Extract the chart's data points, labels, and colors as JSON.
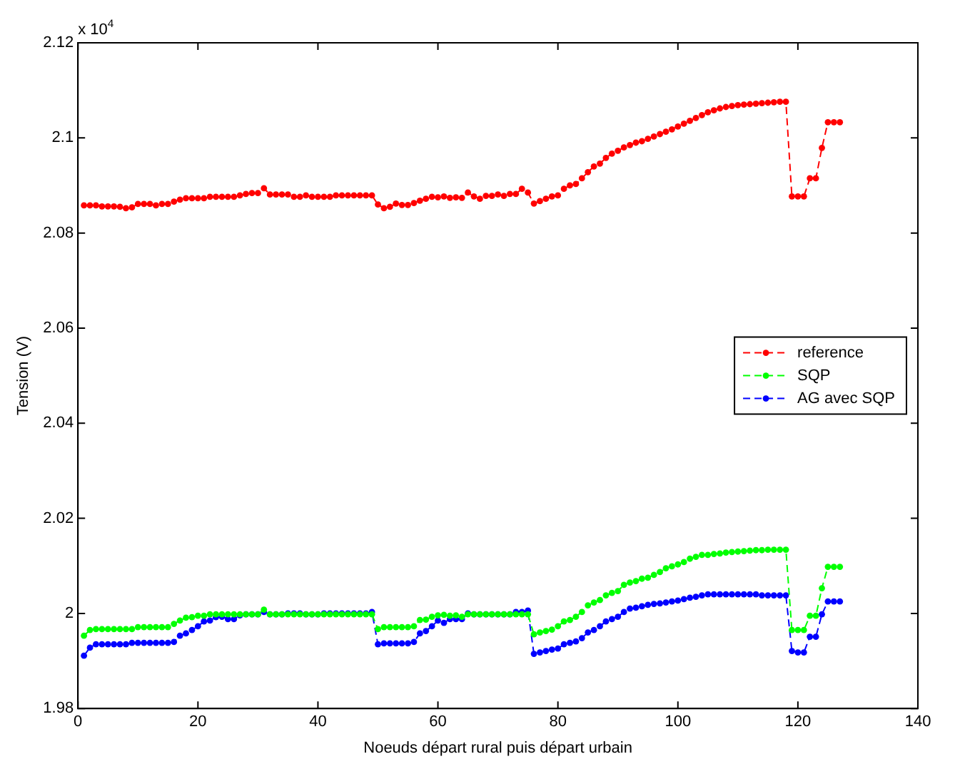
{
  "chart_data": {
    "type": "line",
    "xlabel": "Noeuds départ rural puis départ urbain",
    "ylabel": "Tension (V)",
    "annotations": [
      "x 10$^{4}$"
    ],
    "x": [
      1,
      2,
      3,
      4,
      5,
      6,
      7,
      8,
      9,
      10,
      11,
      12,
      13,
      14,
      15,
      16,
      17,
      18,
      19,
      20,
      21,
      22,
      23,
      24,
      25,
      26,
      27,
      28,
      29,
      30,
      31,
      32,
      33,
      34,
      35,
      36,
      37,
      38,
      39,
      40,
      41,
      42,
      43,
      44,
      45,
      46,
      47,
      48,
      49,
      50,
      51,
      52,
      53,
      54,
      55,
      56,
      57,
      58,
      59,
      60,
      61,
      62,
      63,
      64,
      65,
      66,
      67,
      68,
      69,
      70,
      71,
      72,
      73,
      74,
      75,
      76,
      77,
      78,
      79,
      80,
      81,
      82,
      83,
      84,
      85,
      86,
      87,
      88,
      89,
      90,
      91,
      92,
      93,
      94,
      95,
      96,
      97,
      98,
      99,
      100,
      101,
      102,
      103,
      104,
      105,
      106,
      107,
      108,
      109,
      110,
      111,
      112,
      113,
      114,
      115,
      116,
      117,
      118,
      119,
      120,
      121,
      122,
      123,
      124,
      125,
      126,
      127
    ],
    "series": [
      {
        "name": "reference",
        "color": "#ff0000",
        "values": [
          2.0858,
          2.0858,
          2.0858,
          2.0856,
          2.0856,
          2.0856,
          2.0855,
          2.0852,
          2.0854,
          2.0861,
          2.0861,
          2.0861,
          2.0858,
          2.0861,
          2.0861,
          2.0866,
          2.087,
          2.0873,
          2.0873,
          2.0873,
          2.0873,
          2.0876,
          2.0876,
          2.0876,
          2.0876,
          2.0876,
          2.0879,
          2.0882,
          2.0884,
          2.0884,
          2.0894,
          2.0881,
          2.0881,
          2.0881,
          2.0881,
          2.0876,
          2.0876,
          2.0879,
          2.0876,
          2.0876,
          2.0876,
          2.0876,
          2.0879,
          2.0879,
          2.0879,
          2.0879,
          2.0879,
          2.0879,
          2.0879,
          2.086,
          2.0852,
          2.0855,
          2.0862,
          2.0859,
          2.0859,
          2.0863,
          2.0868,
          2.0872,
          2.0876,
          2.0875,
          2.0877,
          2.0874,
          2.0875,
          2.0874,
          2.0885,
          2.0877,
          2.0872,
          2.0878,
          2.0878,
          2.0881,
          2.0878,
          2.0882,
          2.0882,
          2.0893,
          2.0885,
          2.0862,
          2.0867,
          2.0872,
          2.0877,
          2.0879,
          2.0893,
          2.09,
          2.0903,
          2.0915,
          2.0928,
          2.094,
          2.0946,
          2.0958,
          2.0967,
          2.0973,
          2.098,
          2.0985,
          2.099,
          2.0993,
          2.0998,
          2.1003,
          2.1008,
          2.1013,
          2.1018,
          2.1024,
          2.103,
          2.1036,
          2.1042,
          2.1048,
          2.1054,
          2.1058,
          2.1062,
          2.1065,
          2.1067,
          2.1069,
          2.107,
          2.1071,
          2.1072,
          2.1073,
          2.1074,
          2.1075,
          2.1076,
          2.1076,
          2.0877,
          2.0877,
          2.0877,
          2.0915,
          2.0915,
          2.0979,
          2.1033,
          2.1033,
          2.1033
        ]
      },
      {
        "name": "SQP",
        "color": "#00ff00",
        "values": [
          1.9953,
          1.9965,
          1.9967,
          1.9967,
          1.9967,
          1.9967,
          1.9967,
          1.9967,
          1.9967,
          1.9971,
          1.9971,
          1.9971,
          1.9971,
          1.9971,
          1.9971,
          1.9978,
          1.9985,
          1.9991,
          1.9992,
          1.9995,
          1.9995,
          1.9998,
          1.9998,
          1.9998,
          1.9998,
          1.9998,
          1.9998,
          1.9998,
          1.9998,
          1.9998,
          2.0008,
          1.9998,
          1.9998,
          1.9998,
          1.9998,
          1.9998,
          1.9998,
          1.9998,
          1.9998,
          1.9998,
          1.9998,
          1.9998,
          1.9998,
          1.9998,
          1.9998,
          1.9998,
          1.9998,
          1.9998,
          1.9998,
          1.9967,
          1.9971,
          1.9971,
          1.9971,
          1.9971,
          1.9971,
          1.9973,
          1.9986,
          1.9987,
          1.9993,
          1.9996,
          1.9997,
          1.9995,
          1.9996,
          1.9993,
          1.9998,
          1.9998,
          1.9998,
          1.9998,
          1.9998,
          1.9998,
          1.9998,
          1.9998,
          1.9998,
          1.9998,
          1.9998,
          1.9956,
          1.996,
          1.9963,
          1.9966,
          1.9973,
          1.9983,
          1.9986,
          1.9993,
          2.0003,
          2.0017,
          2.0023,
          2.0028,
          2.0038,
          2.0043,
          2.0047,
          2.006,
          2.0065,
          2.0068,
          2.0073,
          2.0075,
          2.0081,
          2.0087,
          2.0095,
          2.0099,
          2.0103,
          2.0108,
          2.0115,
          2.0119,
          2.0123,
          2.0123,
          2.0125,
          2.0126,
          2.0128,
          2.0129,
          2.013,
          2.0131,
          2.0132,
          2.0133,
          2.0133,
          2.0134,
          2.0134,
          2.0134,
          2.0134,
          1.9965,
          1.9965,
          1.9965,
          1.9995,
          1.9995,
          2.0053,
          2.0098,
          2.0098,
          2.0098
        ]
      },
      {
        "name": "AG avec SQP",
        "color": "#0000ff",
        "values": [
          1.9911,
          1.9928,
          1.9935,
          1.9935,
          1.9935,
          1.9935,
          1.9935,
          1.9935,
          1.9938,
          1.9938,
          1.9938,
          1.9938,
          1.9938,
          1.9938,
          1.9938,
          1.994,
          1.9953,
          1.9958,
          1.9965,
          1.9973,
          1.9983,
          1.9985,
          1.9992,
          1.9993,
          1.9988,
          1.9988,
          1.9996,
          1.9998,
          1.9998,
          1.9998,
          2.0003,
          1.9998,
          1.9998,
          1.9998,
          2,
          2,
          2,
          1.9998,
          1.9998,
          1.9998,
          2,
          2,
          2,
          2,
          2,
          2,
          2,
          2,
          2.0003,
          1.9935,
          1.9937,
          1.9937,
          1.9937,
          1.9937,
          1.9937,
          1.994,
          1.9958,
          1.9963,
          1.9973,
          1.9985,
          1.998,
          1.9988,
          1.9988,
          1.9988,
          2,
          1.9998,
          1.9998,
          1.9998,
          1.9998,
          1.9998,
          1.9998,
          1.9998,
          2.0003,
          2.0003,
          2.0006,
          1.9915,
          1.9918,
          1.9921,
          1.9924,
          1.9926,
          1.9935,
          1.9938,
          1.9941,
          1.9948,
          1.996,
          1.9965,
          1.9973,
          1.9983,
          1.9988,
          1.9993,
          2.0003,
          2.001,
          2.0012,
          2.0015,
          2.0018,
          2.002,
          2.0021,
          2.0023,
          2.0025,
          2.0027,
          2.003,
          2.0033,
          2.0035,
          2.0038,
          2.004,
          2.004,
          2.004,
          2.004,
          2.004,
          2.004,
          2.004,
          2.004,
          2.004,
          2.0038,
          2.0038,
          2.0038,
          2.0038,
          2.0038,
          1.9921,
          1.9918,
          1.9918,
          1.9951,
          1.9951,
          1.9998,
          2.0025,
          2.0025,
          2.0025
        ]
      }
    ],
    "xlim": [
      0,
      140
    ],
    "xticks": [
      0,
      20,
      40,
      60,
      80,
      100,
      120,
      140
    ],
    "ylim": [
      1.98,
      2.12
    ],
    "yticks": [
      1.98,
      2,
      2.02,
      2.04,
      2.06,
      2.08,
      2.1,
      2.12
    ],
    "grid": false,
    "legend": "right",
    "marker": "circle",
    "line_style": "dashed"
  }
}
